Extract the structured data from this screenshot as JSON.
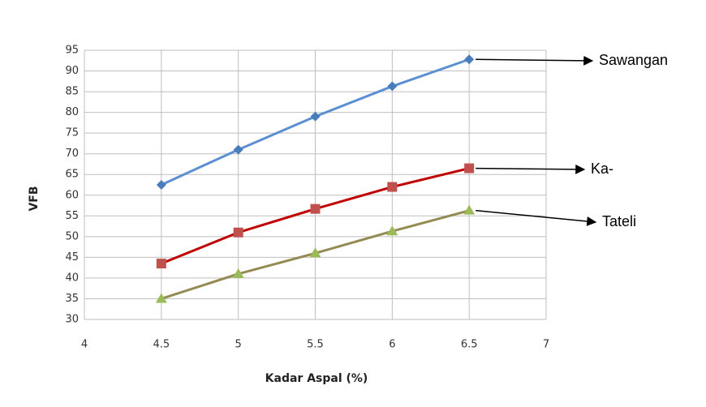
{
  "chart_data": {
    "type": "line",
    "x_label": "Kadar Aspal (%)",
    "y_label": "VFB",
    "x": [
      4.5,
      5,
      5.5,
      6,
      6.5
    ],
    "series": [
      {
        "name": "Sawangan",
        "color": "#5b8fd1",
        "marker": "diamond",
        "marker_color": "#4a7ebb",
        "values": [
          62.5,
          71,
          79,
          86.3,
          92.8
        ]
      },
      {
        "name": "Ka-",
        "color": "#c00000",
        "marker": "square",
        "marker_color": "#c0504d",
        "values": [
          43.5,
          51,
          56.7,
          62,
          66.5
        ]
      },
      {
        "name": "Tateli",
        "color": "#948a54",
        "marker": "triangle",
        "marker_color": "#9bbb59",
        "values": [
          35,
          41,
          46,
          51.3,
          56.3
        ]
      }
    ],
    "xlim": [
      4,
      7
    ],
    "xticks": [
      4,
      4.5,
      5,
      5.5,
      6,
      6.5,
      7
    ],
    "ylim": [
      30,
      95
    ],
    "yticks": [
      30,
      35,
      40,
      45,
      50,
      55,
      60,
      65,
      70,
      75,
      80,
      85,
      90,
      95
    ],
    "grid": true
  }
}
